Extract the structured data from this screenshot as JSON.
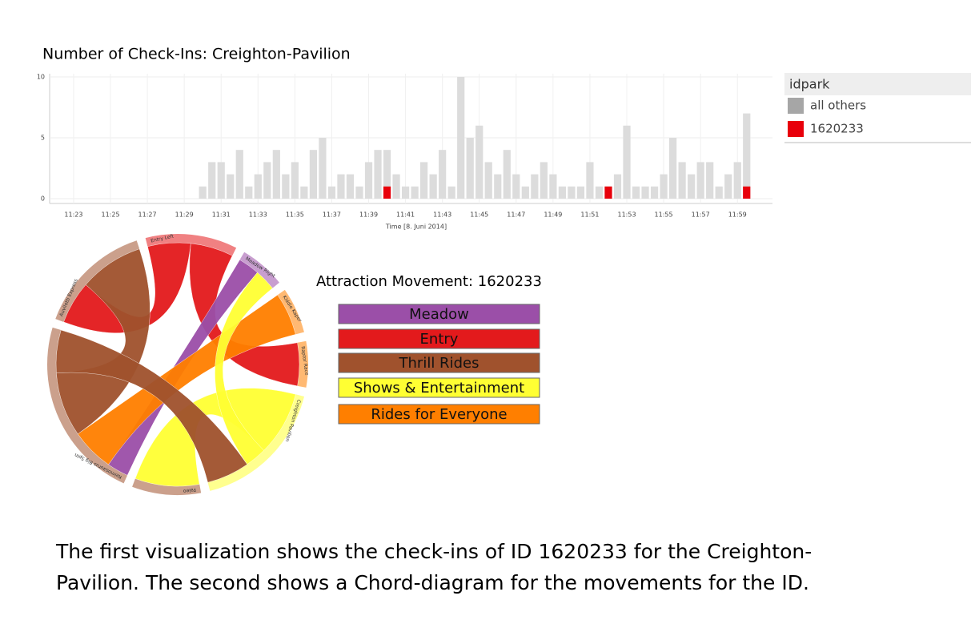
{
  "chart_data": [
    {
      "type": "bar",
      "title": "Number of Check-Ins: Creighton-Pavilion",
      "x_label": "Time [8. Juni 2014]",
      "legend_title": "idpark",
      "x": [
        690,
        690.5,
        691,
        691.5,
        692,
        692.5,
        693,
        693.5,
        694,
        694.5,
        695,
        695.5,
        696,
        696.5,
        697,
        697.5,
        698,
        698.5,
        699,
        699.5,
        700,
        700.5,
        701,
        701.5,
        702,
        702.5,
        703,
        703.5,
        704,
        704.5,
        705,
        705.5,
        706,
        706.5,
        707,
        707.5,
        708,
        708.5,
        709,
        709.5,
        710,
        710.5,
        711,
        711.5,
        712,
        712.5,
        713,
        713.5,
        714,
        714.5,
        715,
        715.5,
        716,
        716.5,
        717,
        717.5,
        718,
        718.5,
        719,
        719.5
      ],
      "series": [
        {
          "name": "all others",
          "color": "#dcdcdc",
          "legend_color": "#a6a6a6",
          "values": [
            1,
            3,
            3,
            2,
            4,
            1,
            2,
            3,
            4,
            2,
            3,
            1,
            4,
            5,
            1,
            2,
            2,
            1,
            3,
            4,
            4,
            2,
            1,
            1,
            3,
            2,
            4,
            1,
            10,
            5,
            6,
            3,
            2,
            4,
            2,
            1,
            2,
            3,
            2,
            1,
            1,
            1,
            3,
            1,
            1,
            2,
            6,
            1,
            1,
            1,
            2,
            5,
            3,
            2,
            3,
            3,
            1,
            2,
            3,
            7
          ]
        },
        {
          "name": "1620233",
          "color": "#e8000b",
          "legend_color": "#e8000b",
          "values": [
            null,
            null,
            null,
            null,
            null,
            null,
            null,
            null,
            null,
            null,
            null,
            null,
            null,
            null,
            null,
            null,
            null,
            null,
            null,
            null,
            1,
            null,
            null,
            null,
            null,
            null,
            null,
            null,
            null,
            null,
            null,
            null,
            null,
            null,
            null,
            null,
            null,
            null,
            null,
            null,
            null,
            null,
            null,
            null,
            1,
            null,
            null,
            null,
            null,
            null,
            null,
            null,
            null,
            null,
            null,
            null,
            null,
            null,
            null,
            1
          ]
        }
      ],
      "xlim": [
        681.7,
        720.9
      ],
      "xticks": [
        {
          "value": 683,
          "label": "11:23"
        },
        {
          "value": 685,
          "label": "11:25"
        },
        {
          "value": 687,
          "label": "11:27"
        },
        {
          "value": 689,
          "label": "11:29"
        },
        {
          "value": 691,
          "label": "11:31"
        },
        {
          "value": 693,
          "label": "11:33"
        },
        {
          "value": 695,
          "label": "11:35"
        },
        {
          "value": 697,
          "label": "11:37"
        },
        {
          "value": 699,
          "label": "11:39"
        },
        {
          "value": 701,
          "label": "11:41"
        },
        {
          "value": 703,
          "label": "11:43"
        },
        {
          "value": 705,
          "label": "11:45"
        },
        {
          "value": 707,
          "label": "11:47"
        },
        {
          "value": 709,
          "label": "11:49"
        },
        {
          "value": 711,
          "label": "11:51"
        },
        {
          "value": 713,
          "label": "11:53"
        },
        {
          "value": 715,
          "label": "11:55"
        },
        {
          "value": 717,
          "label": "11:57"
        },
        {
          "value": 719,
          "label": "11:59"
        }
      ],
      "ylim": [
        0,
        10
      ],
      "yticks": [
        0,
        5,
        10
      ],
      "grid": true
    },
    {
      "type": "chord",
      "title": "Attraction Movement: 1620233",
      "legend": [
        {
          "name": "Meadow",
          "color": "#9b4fa8"
        },
        {
          "name": "Entry",
          "color": "#e31a1c"
        },
        {
          "name": "Thrill Rides",
          "color": "#a0522d"
        },
        {
          "name": "Shows & Entertainment",
          "color": "#ffff33"
        },
        {
          "name": "Rides for Everyone",
          "color": "#ff7f00"
        }
      ],
      "groups": [
        {
          "name": "Entry Left",
          "color": "#e31a1c"
        },
        {
          "name": "Meadow Right",
          "color": "#9b4fa8"
        },
        {
          "name": "Kiddie Kaper",
          "color": "#ff7f00"
        },
        {
          "name": "Raptor Race",
          "color": "#ff7f00"
        },
        {
          "name": "Creighton Pavilion",
          "color": "#ffff33"
        },
        {
          "name": "Paleo",
          "color": "#a0522d"
        },
        {
          "name": "Keimosaurus Big Spin",
          "color": "#a0522d"
        },
        {
          "name": "Auvilotti Express",
          "color": "#a0522d"
        }
      ],
      "links": [
        {
          "source": 0,
          "target": 7,
          "value": 2
        },
        {
          "source": 0,
          "target": 3,
          "value": 2
        },
        {
          "source": 1,
          "target": 6,
          "value": 1
        },
        {
          "source": 2,
          "target": 6,
          "value": 2
        },
        {
          "source": 4,
          "target": 5,
          "value": 3
        },
        {
          "source": 4,
          "target": 1,
          "value": 1
        },
        {
          "source": 7,
          "target": 6,
          "value": 3
        },
        {
          "source": 6,
          "target": 4,
          "value": 2
        }
      ]
    }
  ],
  "caption": [
    "The first visualization shows the check-ins of ID 1620233 for the Creighton-",
    "Pavilion. The second shows a Chord-diagram for the movements for the ID."
  ]
}
